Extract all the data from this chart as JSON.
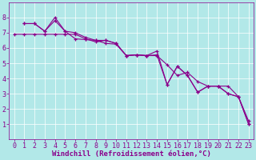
{
  "title": "",
  "xlabel": "Windchill (Refroidissement éolien,°C)",
  "ylabel": "",
  "bg_color": "#b2e8e8",
  "line_color": "#8b008b",
  "xlim": [
    -0.5,
    23.5
  ],
  "ylim": [
    0,
    9
  ],
  "xticks": [
    0,
    1,
    2,
    3,
    4,
    5,
    6,
    7,
    8,
    9,
    10,
    11,
    12,
    13,
    14,
    15,
    16,
    17,
    18,
    19,
    20,
    21,
    22,
    23
  ],
  "yticks": [
    1,
    2,
    3,
    4,
    5,
    6,
    7,
    8
  ],
  "series1_x": [
    0,
    1,
    2,
    3,
    4,
    5,
    6,
    7,
    8,
    9,
    10,
    11,
    12,
    13,
    14,
    15,
    16,
    17,
    18,
    19,
    20,
    21,
    22,
    23
  ],
  "series1_y": [
    6.9,
    6.9,
    6.9,
    6.9,
    6.9,
    6.9,
    6.9,
    6.6,
    6.4,
    6.5,
    6.3,
    5.5,
    5.55,
    5.5,
    5.5,
    4.9,
    4.2,
    4.4,
    3.8,
    3.5,
    3.5,
    3.5,
    2.8,
    1.2
  ],
  "series2_x": [
    1,
    2,
    3,
    4,
    5,
    6,
    7,
    8,
    9,
    10,
    11,
    12,
    13,
    14,
    15,
    16,
    17,
    18,
    19,
    20,
    21,
    22,
    23
  ],
  "series2_y": [
    7.6,
    7.6,
    7.1,
    7.8,
    7.1,
    7.0,
    6.7,
    6.5,
    6.5,
    6.3,
    5.5,
    5.55,
    5.5,
    5.8,
    3.6,
    4.8,
    4.2,
    3.1,
    3.5,
    3.5,
    3.0,
    2.8,
    1.0
  ],
  "series3_x": [
    1,
    2,
    3,
    4,
    5,
    6,
    7,
    8,
    9,
    10,
    11,
    12,
    13,
    14,
    15,
    16,
    17,
    18,
    19,
    20,
    21,
    22,
    23
  ],
  "series3_y": [
    7.6,
    7.6,
    7.1,
    8.0,
    7.1,
    6.6,
    6.55,
    6.5,
    6.3,
    6.25,
    5.5,
    5.55,
    5.5,
    5.55,
    3.6,
    4.8,
    4.2,
    3.1,
    3.5,
    3.5,
    3.0,
    2.8,
    1.0
  ],
  "grid_color": "#ffffff",
  "font_color": "#8b008b",
  "font_family": "monospace",
  "font_size_axis": 6,
  "font_size_label": 6.5
}
